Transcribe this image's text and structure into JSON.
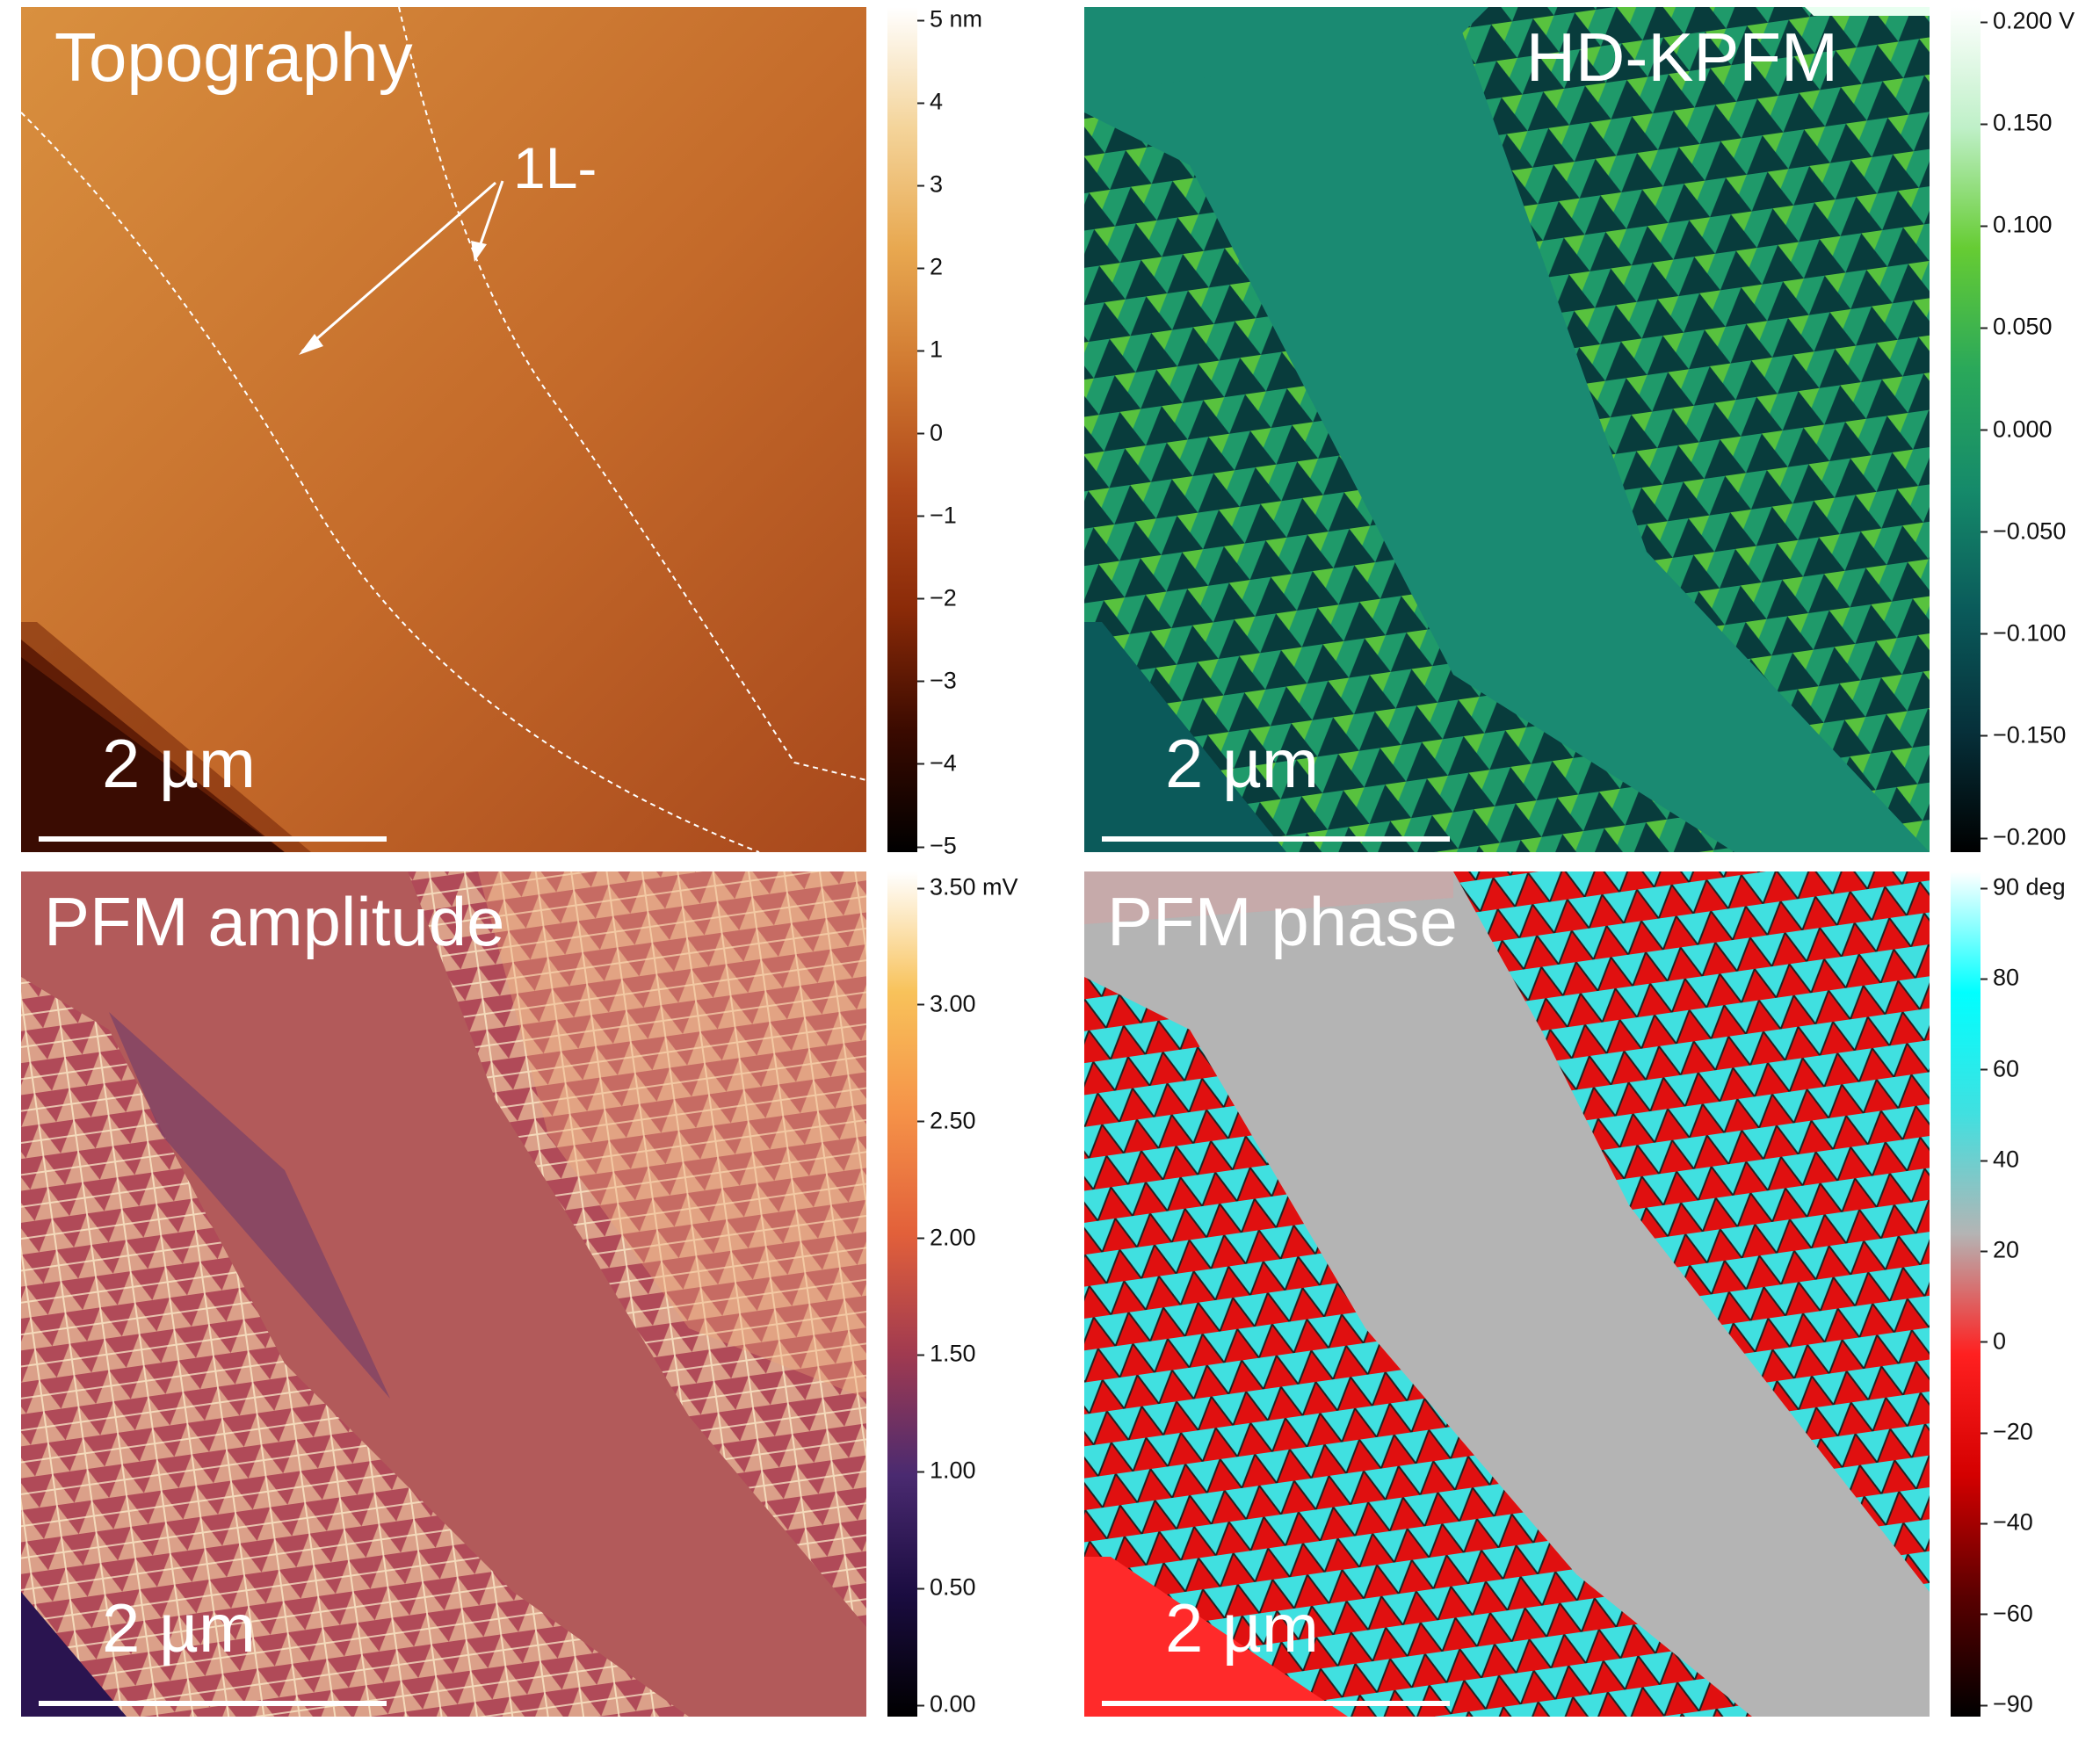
{
  "panels": {
    "topography": {
      "title": "Topography",
      "annotation": "1L-",
      "scalebar": "2 µm",
      "colorbar": {
        "colors": [
          "#000000",
          "#3a0a00",
          "#8a2a08",
          "#b0481a",
          "#d07830",
          "#e8a850",
          "#f4d49a",
          "#ffffff"
        ],
        "ticks": [
          "5 nm",
          "4",
          "3",
          "2",
          "1",
          "0",
          "−1",
          "−2",
          "−3",
          "−4",
          "−5"
        ]
      }
    },
    "kpfm": {
      "title": "HD-KPFM",
      "scalebar": "2 µm",
      "colorbar": {
        "colors": [
          "#000000",
          "#06303a",
          "#0a5a5a",
          "#158a6a",
          "#2aa85a",
          "#66cc33",
          "#bff0c8",
          "#ffffff"
        ],
        "ticks": [
          "0.200 V",
          "0.150",
          "0.100",
          "0.050",
          "0.000",
          "−0.050",
          "−0.100",
          "−0.150",
          "−0.200"
        ]
      }
    },
    "pfm_amplitude": {
      "title": "PFM amplitude",
      "scalebar": "2 µm",
      "colorbar": {
        "colors": [
          "#000000",
          "#1a0c40",
          "#4a2a70",
          "#a03a50",
          "#e2603a",
          "#f59248",
          "#f8c25a",
          "#ffffff"
        ],
        "ticks": [
          "3.50 mV",
          "3.00",
          "2.50",
          "2.00",
          "1.50",
          "1.00",
          "0.50",
          "0.00"
        ]
      }
    },
    "pfm_phase": {
      "title": "PFM phase",
      "scalebar": "2 µm",
      "colorbar": {
        "colors": [
          "#000000",
          "#5a0000",
          "#d40000",
          "#ff2020",
          "#b4b4b4",
          "#40e0e0",
          "#00ffff",
          "#ffffff"
        ],
        "ticks": [
          "90 deg",
          "80",
          "60",
          "40",
          "20",
          "0",
          "−20",
          "−40",
          "−60",
          "−90"
        ]
      }
    }
  }
}
